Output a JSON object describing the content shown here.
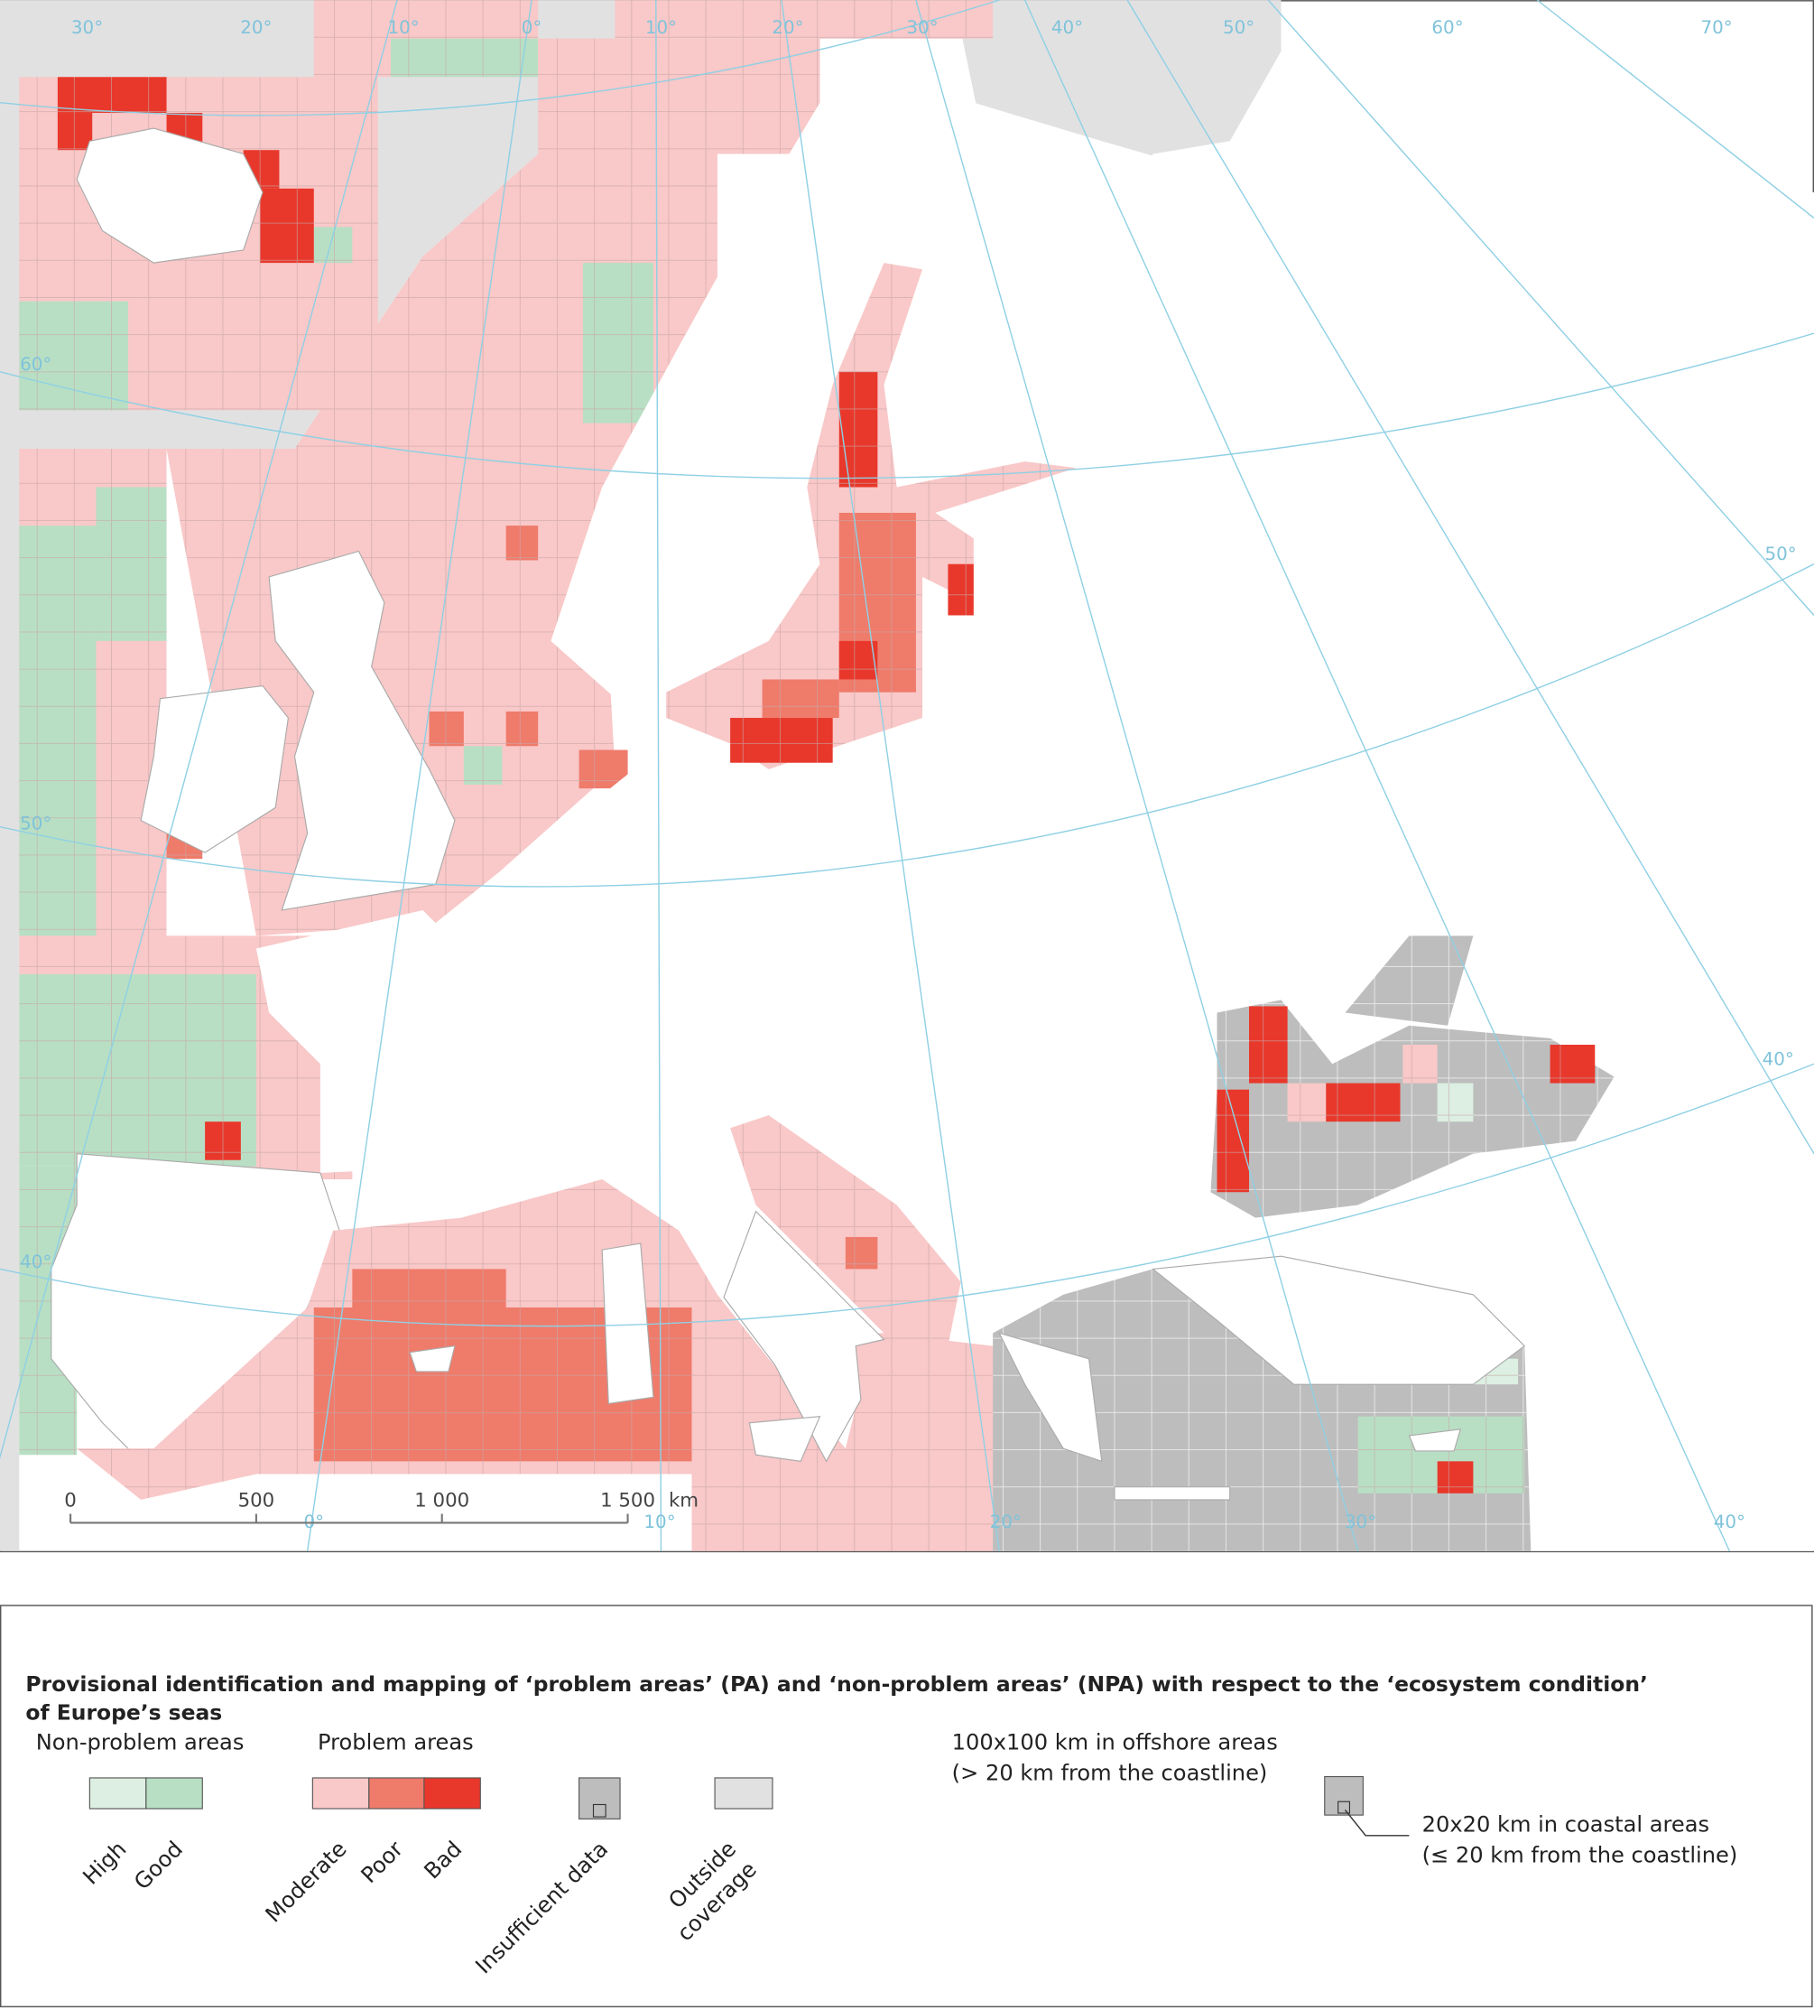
{
  "map": {
    "graticule_labels": {
      "top": [
        "30°",
        "20°",
        "10°",
        "0°",
        "10°",
        "20°",
        "30°",
        "40°",
        "50°",
        "60°",
        "70°"
      ],
      "left": [
        "60°",
        "50°",
        "40°"
      ],
      "right": [
        "50°",
        "40°"
      ],
      "bottom": [
        "0°",
        "10°",
        "20°",
        "30°",
        "40°"
      ]
    },
    "scale_bar": {
      "labels": [
        "0",
        "500",
        "1 000",
        "1 500"
      ],
      "unit": "km"
    }
  },
  "legend": {
    "title_lines": [
      "Provisional identification and mapping of ‘problem areas’ (PA) and ‘non-problem areas’ (NPA) with respect to the ‘ecosystem condition’",
      "of Europe’s seas"
    ],
    "groups": [
      "Non-problem areas",
      "Problem areas"
    ],
    "items": [
      {
        "label": "High",
        "color": "#dcefe2"
      },
      {
        "label": "Good",
        "color": "#b8dfc4"
      },
      {
        "label": "Moderate",
        "color": "#f9c8c8"
      },
      {
        "label": "Poor",
        "color": "#ef7b6b"
      },
      {
        "label": "Bad",
        "color": "#e8382b"
      }
    ],
    "insufficient": {
      "label": "Insufficient data",
      "color": "#bdbdbd"
    },
    "outside": {
      "lines": [
        "Outside",
        "coverage"
      ],
      "color": "#e1e1e2"
    },
    "grid_notes": {
      "offshore": [
        "100x100 km in offshore areas",
        "(> 20 km from the coastline)"
      ],
      "coastal": [
        "20x20 km in coastal areas",
        "(≤ 20 km from the coastline)"
      ]
    }
  }
}
